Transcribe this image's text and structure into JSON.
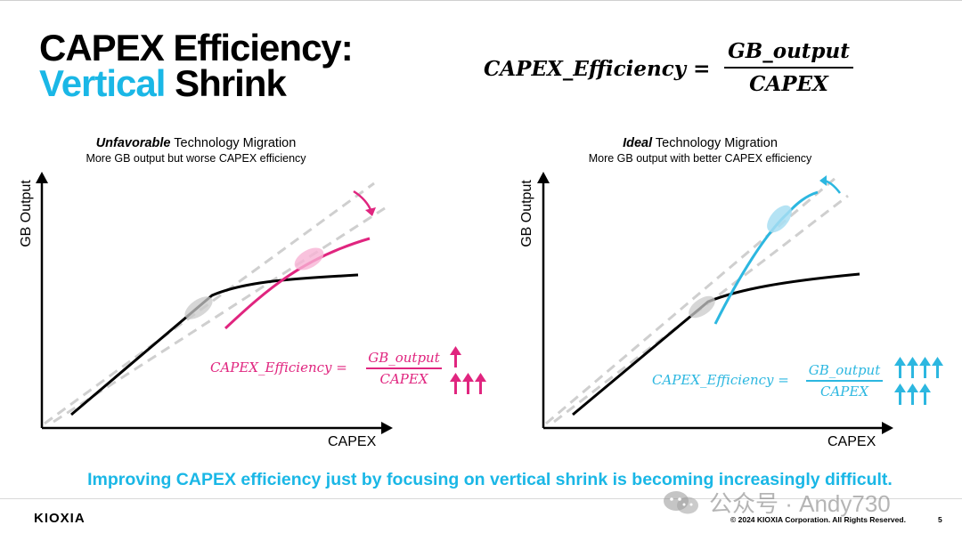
{
  "title": {
    "line1": "CAPEX Efficiency:",
    "line2_accent": "Vertical",
    "line2_rest": "Shrink"
  },
  "formula": {
    "lhs": "CAPEX_Efficiency =",
    "numerator": "GB_output",
    "denominator": "CAPEX"
  },
  "left_chart": {
    "heading_emph": "Unfavorable",
    "heading_rest": "Technology Migration",
    "subheading": "More GB output but worse CAPEX efficiency",
    "y_label": "GB Output",
    "x_label": "CAPEX",
    "equation": {
      "lhs": "CAPEX_Efficiency =",
      "numerator": "GB_output",
      "denominator": "CAPEX"
    },
    "colors": {
      "new_node": "#e0257f",
      "old_node": "#000000",
      "ideal_lines": "#cccccc"
    }
  },
  "right_chart": {
    "heading_emph": "Ideal",
    "heading_rest": "Technology Migration",
    "subheading": "More GB output with better CAPEX efficiency",
    "y_label": "GB Output",
    "x_label": "CAPEX",
    "equation": {
      "lhs": "CAPEX_Efficiency =",
      "numerator": "GB_output",
      "denominator": "CAPEX"
    },
    "colors": {
      "new_node": "#2cb7e0",
      "old_node": "#000000",
      "ideal_lines": "#cccccc"
    }
  },
  "bottom_message": "Improving CAPEX efficiency just by focusing on vertical shrink is becoming increasingly difficult.",
  "footer": {
    "logo": "KIOXIA",
    "copyright": "© 2024 KIOXIA Corporation. All Rights Reserved.",
    "page": "5"
  },
  "watermark": "公众号 · Andy730"
}
